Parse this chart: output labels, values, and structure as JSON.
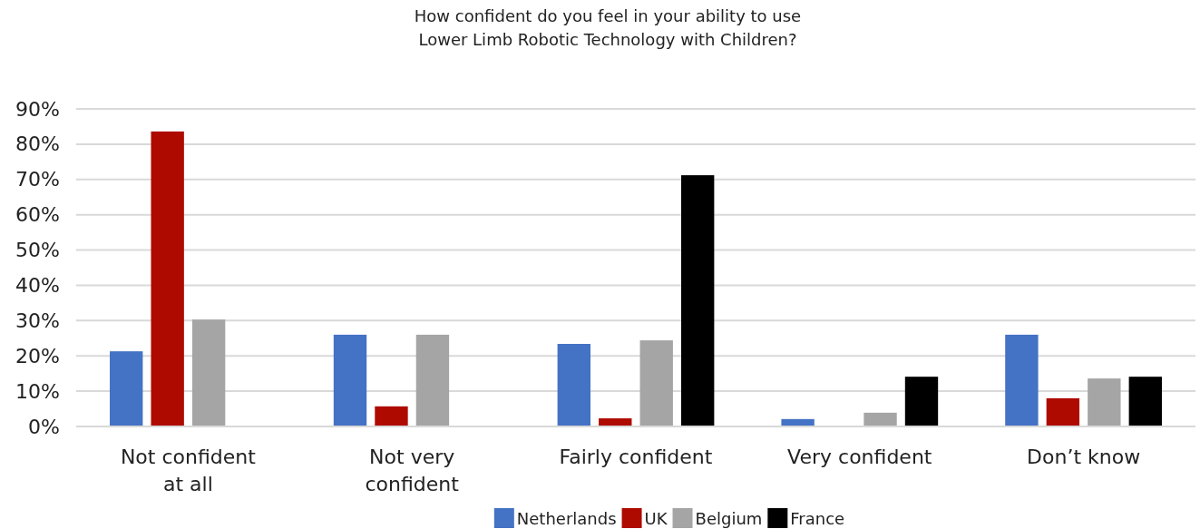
{
  "chart_data": {
    "type": "bar",
    "title": "How confident do you feel in your ability to use Lower Limb Robotic Technology with Children?",
    "categories": [
      "Not confident at all",
      "Not very confident",
      "Fairly confident",
      "Very confident",
      "Don’t know"
    ],
    "series": [
      {
        "name": "Netherlands",
        "color": "#4472c4",
        "values": [
          21.3,
          26,
          23.4,
          2.1,
          26
        ]
      },
      {
        "name": "UK",
        "color": "#ae0a00",
        "values": [
          83.6,
          5.7,
          2.3,
          0,
          8
        ]
      },
      {
        "name": "Belgium",
        "color": "#a5a5a5",
        "values": [
          30.3,
          26,
          24.4,
          3.9,
          13.6
        ]
      },
      {
        "name": "France",
        "color": "#000000",
        "values": [
          0,
          0,
          71.2,
          14.1,
          14.1
        ]
      }
    ],
    "ylim": [
      0,
      90
    ],
    "yticks": [
      {
        "value": 0,
        "label": "0%"
      },
      {
        "value": 10,
        "label": "10%"
      },
      {
        "value": 20,
        "label": "20%"
      },
      {
        "value": 30,
        "label": "30%"
      },
      {
        "value": 40,
        "label": "40%"
      },
      {
        "value": 50,
        "label": "50%"
      },
      {
        "value": 60,
        "label": "60%"
      },
      {
        "value": 70,
        "label": "70%"
      },
      {
        "value": 80,
        "label": "80%"
      },
      {
        "value": 90,
        "label": "90%"
      }
    ],
    "grid": "y",
    "legend": "bottom"
  }
}
